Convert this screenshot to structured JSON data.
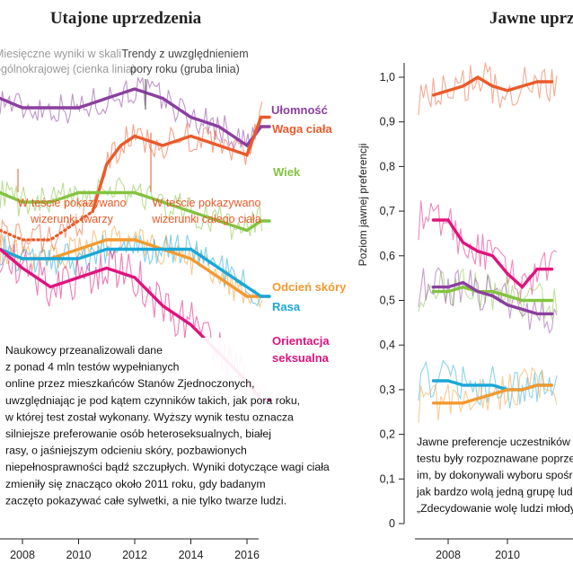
{
  "colors": {
    "disability": "#8b3fa0",
    "weight": "#ea5a2a",
    "age": "#84c341",
    "skin": "#f29a30",
    "race": "#1aa7d8",
    "orientation": "#e0127c",
    "gray_text": "#9a9a9a",
    "dark_text": "#333333"
  },
  "left": {
    "title": "Utajone uprzedzenia",
    "note_monthly": [
      "Miesięczne wyniki w skali",
      "ogólnokrajowej (cienka linia)"
    ],
    "note_trend": [
      "Trendy z uwzględnieniem",
      "pory roku (gruba linia)"
    ],
    "annot_faces": [
      "W teście pokazywano",
      "wizerunki twarzy"
    ],
    "annot_body": [
      "W teście pokazywano",
      "wizerunki całego ciała"
    ],
    "paragraph": [
      "Naukowcy przeanalizowali dane",
      "z ponad 4 mln testów wypełnianych",
      "online przez mieszkańców Stanów Zjednoczonych,",
      "uwzględniając je pod kątem czynników takich, jak pora roku,",
      "w której test został wykonany. Wyższy wynik testu oznacza",
      "silniejsze preferowanie osób heteroseksualnych, białej",
      "rasy, o jaśniejszym odcieniu skóry, pozbawionych",
      "niepełnosprawności bądź szczupłych. Wyniki dotyczące wagi ciała",
      "zmieniły się znacząco około 2011 roku, gdy badanym",
      "zaczęto pokazywać całe sylwetki, a nie tylko twarze ludzi."
    ]
  },
  "right": {
    "title": "Jawne uprzedzenia",
    "ylabel": "Poziom jawnej preferencji",
    "paragraph": [
      "Jawne preferencje uczestników",
      "testu były rozpoznawane poprzez",
      "im, by dokonywali wyboru spośród",
      "jak bardzo wolą jedną grupę ludzi",
      "„Zdecydowanie wolę ludzi młodych”"
    ]
  },
  "chart_data": [
    {
      "type": "line",
      "title": "Utajone uprzedzenia",
      "xlabel": "",
      "ylabel": "",
      "xlim": [
        2007.2,
        2016.8
      ],
      "x_ticks": [
        "2008",
        "2010",
        "2012",
        "2014",
        "2016"
      ],
      "series": [
        {
          "name": "Ułomność",
          "color_key": "disability",
          "x": [
            2007.2,
            2008,
            2009,
            2010,
            2011,
            2012,
            2013,
            2014,
            2015,
            2016,
            2016.5
          ],
          "y": [
            0.46,
            0.45,
            0.45,
            0.45,
            0.46,
            0.47,
            0.46,
            0.44,
            0.43,
            0.41,
            0.43
          ]
        },
        {
          "name": "Waga ciała",
          "color_key": "weight",
          "x": [
            2007.2,
            2008,
            2009,
            2010,
            2010.5,
            2011,
            2011.5,
            2012,
            2013,
            2014,
            2015,
            2016,
            2016.5
          ],
          "y": [
            0.32,
            0.31,
            0.31,
            0.33,
            0.34,
            0.39,
            0.41,
            0.42,
            0.41,
            0.42,
            0.41,
            0.4,
            0.44
          ]
        },
        {
          "name": "Wiek",
          "color_key": "age",
          "x": [
            2007.2,
            2008,
            2009,
            2010,
            2011,
            2012,
            2013,
            2014,
            2015,
            2016,
            2016.5
          ],
          "y": [
            0.36,
            0.35,
            0.35,
            0.36,
            0.36,
            0.36,
            0.35,
            0.34,
            0.33,
            0.32,
            0.33
          ]
        },
        {
          "name": "Odcień skóry",
          "color_key": "skin",
          "x": [
            2007.2,
            2008,
            2009,
            2010,
            2011,
            2012,
            2013,
            2014,
            2015,
            2016,
            2016.5
          ],
          "y": [
            0.3,
            0.29,
            0.29,
            0.3,
            0.31,
            0.31,
            0.3,
            0.29,
            0.27,
            0.25,
            0.25
          ]
        },
        {
          "name": "Rasa",
          "color_key": "race",
          "x": [
            2007.2,
            2008,
            2009,
            2010,
            2011,
            2012,
            2013,
            2014,
            2015,
            2016,
            2016.5
          ],
          "y": [
            0.3,
            0.29,
            0.29,
            0.29,
            0.3,
            0.3,
            0.3,
            0.3,
            0.28,
            0.26,
            0.25
          ]
        },
        {
          "name": "Orientacja seksualna",
          "color_key": "orientation",
          "x": [
            2007.2,
            2008,
            2009,
            2010,
            2011,
            2012,
            2013,
            2014,
            2015,
            2016,
            2016.5
          ],
          "y": [
            0.3,
            0.28,
            0.26,
            0.27,
            0.28,
            0.27,
            0.24,
            0.22,
            0.19,
            0.16,
            0.14
          ]
        }
      ]
    },
    {
      "type": "line",
      "title": "Jawne uprzedzenia",
      "xlabel": "",
      "ylabel": "Poziom jawnej preferencji",
      "xlim": [
        2007,
        2011
      ],
      "ylim": [
        0,
        1.05
      ],
      "y_ticks": [
        "0",
        "0,1",
        "0,2",
        "0,3",
        "0,4",
        "0,5",
        "0,6",
        "0,7",
        "0,8",
        "0,9",
        "1,0"
      ],
      "x_ticks": [
        "2008",
        "2010"
      ],
      "series": [
        {
          "color_key": "weight",
          "x": [
            2007.5,
            2008,
            2008.5,
            2009,
            2009.5,
            2010,
            2010.5,
            2011
          ],
          "y": [
            0.96,
            0.97,
            0.98,
            1.0,
            0.98,
            0.97,
            0.98,
            0.99
          ]
        },
        {
          "color_key": "orientation",
          "x": [
            2007.5,
            2008,
            2008.5,
            2009,
            2009.5,
            2010,
            2010.5,
            2011
          ],
          "y": [
            0.68,
            0.68,
            0.63,
            0.61,
            0.6,
            0.56,
            0.53,
            0.57
          ]
        },
        {
          "color_key": "age",
          "x": [
            2007.5,
            2008,
            2008.5,
            2009,
            2009.5,
            2010,
            2010.5,
            2011
          ],
          "y": [
            0.52,
            0.52,
            0.53,
            0.52,
            0.52,
            0.51,
            0.5,
            0.5
          ]
        },
        {
          "color_key": "disability",
          "x": [
            2007.5,
            2008,
            2008.5,
            2009,
            2009.5,
            2010,
            2010.5,
            2011
          ],
          "y": [
            0.53,
            0.53,
            0.54,
            0.52,
            0.51,
            0.49,
            0.48,
            0.47
          ]
        },
        {
          "color_key": "race",
          "x": [
            2007.5,
            2008,
            2008.5,
            2009,
            2009.5,
            2010,
            2010.5,
            2011
          ],
          "y": [
            0.32,
            0.32,
            0.31,
            0.31,
            0.31,
            0.3,
            0.3,
            0.31
          ]
        },
        {
          "color_key": "skin",
          "x": [
            2007.5,
            2008,
            2008.5,
            2009,
            2009.5,
            2010,
            2010.5,
            2011
          ],
          "y": [
            0.27,
            0.27,
            0.27,
            0.28,
            0.29,
            0.3,
            0.3,
            0.31
          ]
        }
      ]
    }
  ]
}
